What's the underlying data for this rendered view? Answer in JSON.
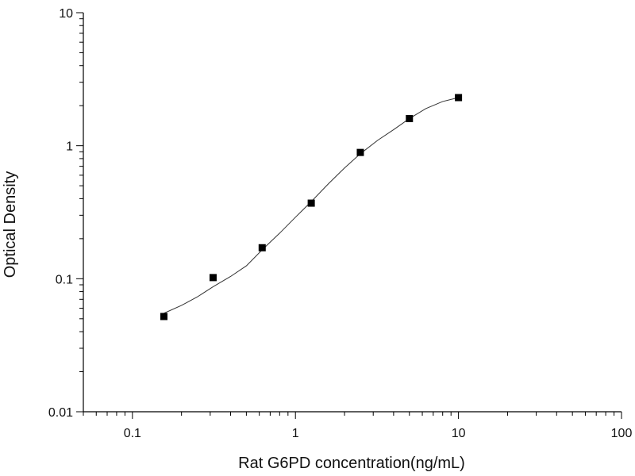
{
  "chart_data": {
    "type": "scatter",
    "title": "",
    "xlabel": "Rat G6PD concentration(ng/mL)",
    "ylabel": "Optical Density",
    "xscale": "log",
    "yscale": "log",
    "xlim": [
      0.05,
      100
    ],
    "ylim": [
      0.01,
      10
    ],
    "xticks": [
      0.1,
      1,
      10,
      100
    ],
    "xtick_labels": [
      "0.1",
      "1",
      "10",
      "100"
    ],
    "yticks": [
      0.01,
      0.1,
      1,
      10
    ],
    "ytick_labels": [
      "0.01",
      "0.1",
      "1",
      "10"
    ],
    "grid": false,
    "legend": "none",
    "series": [
      {
        "marker": "square",
        "color": "#000000",
        "x": [
          0.156,
          0.3125,
          0.625,
          1.25,
          2.5,
          5,
          10
        ],
        "y": [
          0.052,
          0.102,
          0.171,
          0.37,
          0.89,
          1.6,
          2.3
        ]
      }
    ],
    "fit_curve": {
      "type": "line",
      "color": "#333333",
      "x": [
        0.156,
        0.2,
        0.25,
        0.3125,
        0.4,
        0.5,
        0.625,
        0.8,
        1.0,
        1.25,
        1.6,
        2.0,
        2.5,
        3.2,
        4.0,
        5.0,
        6.3,
        8.0,
        10.0
      ],
      "y": [
        0.055,
        0.063,
        0.073,
        0.087,
        0.104,
        0.125,
        0.165,
        0.22,
        0.29,
        0.38,
        0.52,
        0.68,
        0.87,
        1.1,
        1.32,
        1.6,
        1.9,
        2.15,
        2.3
      ]
    }
  }
}
